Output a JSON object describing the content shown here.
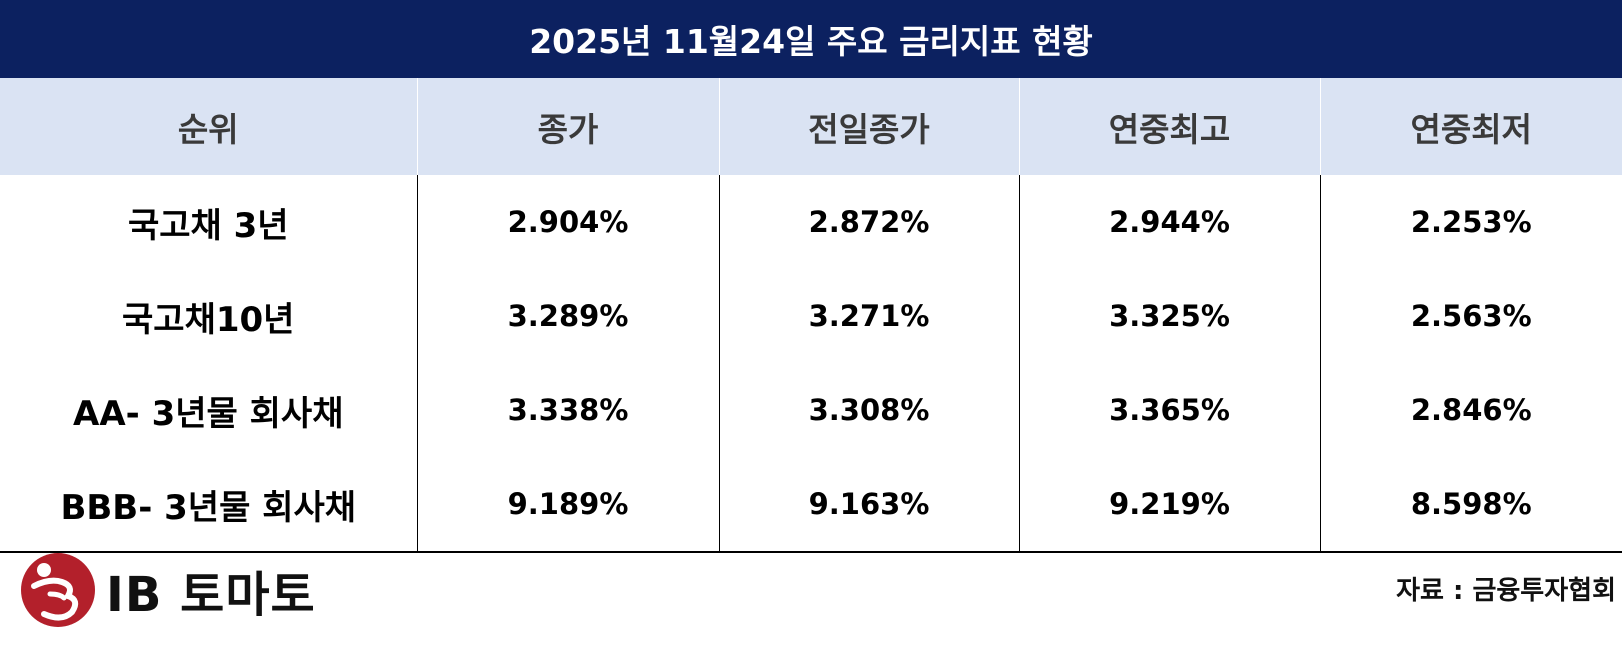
{
  "header": {
    "title": "2025년 11월24일 주요 금리지표 현황"
  },
  "table": {
    "columns": [
      "순위",
      "종가",
      "전일종가",
      "연중최고",
      "연중최저"
    ],
    "rows": [
      [
        "국고채 3년",
        "2.904%",
        "2.872%",
        "2.944%",
        "2.253%"
      ],
      [
        "국고채10년",
        "3.289%",
        "3.271%",
        "3.325%",
        "2.563%"
      ],
      [
        "AA- 3년물 회사채",
        "3.338%",
        "3.308%",
        "3.365%",
        "2.846%"
      ],
      [
        "BBB- 3년물 회사채",
        "9.189%",
        "9.163%",
        "9.219%",
        "8.598%"
      ]
    ]
  },
  "footer": {
    "logo": "IB 토마토",
    "source": "자료 : 금융투자협회"
  }
}
